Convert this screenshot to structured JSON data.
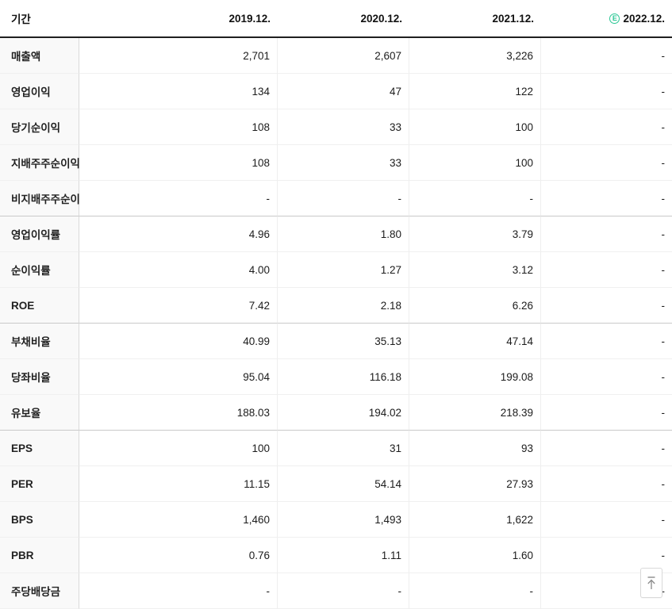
{
  "table": {
    "period_header": "기간",
    "columns": [
      {
        "label": "2019.12.",
        "estimate": false
      },
      {
        "label": "2020.12.",
        "estimate": false
      },
      {
        "label": "2021.12.",
        "estimate": false
      },
      {
        "label": "2022.12.",
        "estimate": true
      }
    ],
    "estimate_badge": "E",
    "rows": [
      {
        "label": "매출액",
        "values": [
          "2,701",
          "2,607",
          "3,226",
          "-"
        ],
        "group_end": false
      },
      {
        "label": "영업이익",
        "values": [
          "134",
          "47",
          "122",
          "-"
        ],
        "group_end": false
      },
      {
        "label": "당기순이익",
        "values": [
          "108",
          "33",
          "100",
          "-"
        ],
        "group_end": false
      },
      {
        "label": "지배주주순이익",
        "values": [
          "108",
          "33",
          "100",
          "-"
        ],
        "group_end": false
      },
      {
        "label": "비지배주주순이익",
        "values": [
          "-",
          "-",
          "-",
          "-"
        ],
        "group_end": true
      },
      {
        "label": "영업이익률",
        "values": [
          "4.96",
          "1.80",
          "3.79",
          "-"
        ],
        "group_end": false
      },
      {
        "label": "순이익률",
        "values": [
          "4.00",
          "1.27",
          "3.12",
          "-"
        ],
        "group_end": false
      },
      {
        "label": "ROE",
        "values": [
          "7.42",
          "2.18",
          "6.26",
          "-"
        ],
        "group_end": true
      },
      {
        "label": "부채비율",
        "values": [
          "40.99",
          "35.13",
          "47.14",
          "-"
        ],
        "group_end": false
      },
      {
        "label": "당좌비율",
        "values": [
          "95.04",
          "116.18",
          "199.08",
          "-"
        ],
        "group_end": false
      },
      {
        "label": "유보율",
        "values": [
          "188.03",
          "194.02",
          "218.39",
          "-"
        ],
        "group_end": true
      },
      {
        "label": "EPS",
        "values": [
          "100",
          "31",
          "93",
          "-"
        ],
        "group_end": false
      },
      {
        "label": "PER",
        "values": [
          "11.15",
          "54.14",
          "27.93",
          "-"
        ],
        "group_end": false
      },
      {
        "label": "BPS",
        "values": [
          "1,460",
          "1,493",
          "1,622",
          "-"
        ],
        "group_end": false
      },
      {
        "label": "PBR",
        "values": [
          "0.76",
          "1.11",
          "1.60",
          "-"
        ],
        "group_end": false
      },
      {
        "label": "주당배당금",
        "values": [
          "-",
          "-",
          "-",
          "-"
        ],
        "group_end": false
      }
    ]
  },
  "colors": {
    "estimate_green": "#2bc795",
    "header_rule": "#1f1f1f",
    "group_separator": "#c9c9c9",
    "row_separator": "#f0f0f0",
    "label_column_bg": "#f9f9f9"
  },
  "scroll_top_button": {
    "icon": "arrow-up-to-line"
  }
}
